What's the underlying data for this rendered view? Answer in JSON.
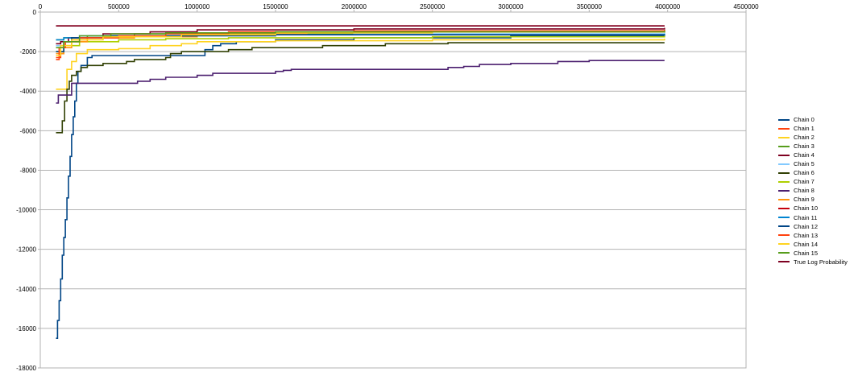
{
  "chart_data": {
    "type": "line",
    "title": "",
    "xlabel": "",
    "ylabel": "",
    "xlim": [
      0,
      4500000
    ],
    "ylim": [
      -18000,
      0
    ],
    "x_ticks": [
      "0",
      "500000",
      "1000000",
      "1500000",
      "2000000",
      "2500000",
      "3000000",
      "3500000",
      "4000000",
      "4500000"
    ],
    "y_ticks": [
      "0",
      "-2000",
      "-4000",
      "-6000",
      "-8000",
      "-10000",
      "-12000",
      "-14000",
      "-16000",
      "-18000"
    ],
    "grid": "horizontal",
    "legend_position": "right",
    "series": [
      {
        "name": "Chain 0",
        "color": "#004586",
        "points": [
          [
            100000,
            -16500
          ],
          [
            110000,
            -15600
          ],
          [
            120000,
            -14600
          ],
          [
            130000,
            -13500
          ],
          [
            140000,
            -12300
          ],
          [
            150000,
            -11400
          ],
          [
            160000,
            -10500
          ],
          [
            170000,
            -9400
          ],
          [
            180000,
            -8300
          ],
          [
            190000,
            -7300
          ],
          [
            200000,
            -6200
          ],
          [
            210000,
            -5300
          ],
          [
            220000,
            -4500
          ],
          [
            230000,
            -3600
          ],
          [
            240000,
            -3000
          ],
          [
            260000,
            -2700
          ],
          [
            300000,
            -2300
          ],
          [
            330000,
            -2200
          ],
          [
            1000000,
            -2200
          ],
          [
            1050000,
            -1900
          ],
          [
            1100000,
            -1700
          ],
          [
            1150000,
            -1600
          ],
          [
            1250000,
            -1500
          ],
          [
            1500000,
            -1400
          ],
          [
            2000000,
            -1300
          ],
          [
            3000000,
            -1200
          ],
          [
            3800000,
            -1200
          ],
          [
            3980000,
            -1100
          ]
        ]
      },
      {
        "name": "Chain 1",
        "color": "#ff420e",
        "points": [
          [
            100000,
            -2300
          ],
          [
            130000,
            -2100
          ],
          [
            150000,
            -1500
          ],
          [
            200000,
            -1400
          ],
          [
            300000,
            -1300
          ],
          [
            600000,
            -1200
          ],
          [
            1000000,
            -1100
          ],
          [
            1500000,
            -1100
          ],
          [
            2500000,
            -1000
          ],
          [
            3980000,
            -900
          ]
        ]
      },
      {
        "name": "Chain 2",
        "color": "#ffd320",
        "points": [
          [
            100000,
            -3900
          ],
          [
            150000,
            -3900
          ],
          [
            170000,
            -2900
          ],
          [
            200000,
            -2500
          ],
          [
            230000,
            -2100
          ],
          [
            300000,
            -1900
          ],
          [
            500000,
            -1850
          ],
          [
            700000,
            -1700
          ],
          [
            900000,
            -1600
          ],
          [
            1000000,
            -1500
          ],
          [
            1500000,
            -1450
          ],
          [
            2500000,
            -1400
          ],
          [
            3980000,
            -1350
          ]
        ]
      },
      {
        "name": "Chain 3",
        "color": "#579d1c",
        "points": [
          [
            100000,
            -1400
          ],
          [
            150000,
            -1300
          ],
          [
            300000,
            -1200
          ],
          [
            600000,
            -1100
          ],
          [
            1000000,
            -1100
          ],
          [
            2000000,
            -1000
          ],
          [
            3980000,
            -950
          ]
        ]
      },
      {
        "name": "Chain 4",
        "color": "#7e0021",
        "points": [
          [
            100000,
            -1600
          ],
          [
            130000,
            -1500
          ],
          [
            180000,
            -1300
          ],
          [
            400000,
            -1100
          ],
          [
            700000,
            -1000
          ],
          [
            1000000,
            -900
          ],
          [
            2000000,
            -850
          ],
          [
            3980000,
            -800
          ]
        ]
      },
      {
        "name": "Chain 5",
        "color": "#83caff",
        "points": [
          [
            100000,
            -1700
          ],
          [
            150000,
            -1500
          ],
          [
            250000,
            -1300
          ],
          [
            500000,
            -1200
          ],
          [
            1000000,
            -1150
          ],
          [
            2000000,
            -1100
          ],
          [
            3980000,
            -1050
          ]
        ]
      },
      {
        "name": "Chain 6",
        "color": "#314004",
        "points": [
          [
            100000,
            -6100
          ],
          [
            130000,
            -6100
          ],
          [
            140000,
            -5500
          ],
          [
            155000,
            -4500
          ],
          [
            170000,
            -3900
          ],
          [
            185000,
            -3500
          ],
          [
            200000,
            -3200
          ],
          [
            230000,
            -3000
          ],
          [
            260000,
            -2800
          ],
          [
            300000,
            -2700
          ],
          [
            400000,
            -2600
          ],
          [
            550000,
            -2500
          ],
          [
            600000,
            -2400
          ],
          [
            800000,
            -2300
          ],
          [
            830000,
            -2100
          ],
          [
            900000,
            -2000
          ],
          [
            1200000,
            -1900
          ],
          [
            1350000,
            -1800
          ],
          [
            1800000,
            -1700
          ],
          [
            2200000,
            -1600
          ],
          [
            2600000,
            -1550
          ],
          [
            3980000,
            -1550
          ]
        ]
      },
      {
        "name": "Chain 7",
        "color": "#aecf00",
        "points": [
          [
            100000,
            -2000
          ],
          [
            150000,
            -1700
          ],
          [
            250000,
            -1500
          ],
          [
            500000,
            -1400
          ],
          [
            800000,
            -1350
          ],
          [
            1200000,
            -1300
          ],
          [
            2500000,
            -1250
          ],
          [
            3980000,
            -1200
          ]
        ]
      },
      {
        "name": "Chain 8",
        "color": "#4b1f6f",
        "points": [
          [
            100000,
            -4600
          ],
          [
            115000,
            -4200
          ],
          [
            200000,
            -3600
          ],
          [
            600000,
            -3600
          ],
          [
            620000,
            -3500
          ],
          [
            700000,
            -3400
          ],
          [
            800000,
            -3300
          ],
          [
            1000000,
            -3200
          ],
          [
            1100000,
            -3100
          ],
          [
            1500000,
            -3000
          ],
          [
            1550000,
            -2950
          ],
          [
            1600000,
            -2900
          ],
          [
            1700000,
            -2900
          ],
          [
            2300000,
            -2900
          ],
          [
            2600000,
            -2800
          ],
          [
            2700000,
            -2750
          ],
          [
            2800000,
            -2650
          ],
          [
            3000000,
            -2600
          ],
          [
            3300000,
            -2500
          ],
          [
            3500000,
            -2450
          ],
          [
            3980000,
            -2450
          ]
        ]
      },
      {
        "name": "Chain 9",
        "color": "#ff950e",
        "points": [
          [
            100000,
            -2100
          ],
          [
            150000,
            -1800
          ],
          [
            200000,
            -1500
          ],
          [
            300000,
            -1300
          ],
          [
            600000,
            -1250
          ],
          [
            1000000,
            -1100
          ],
          [
            1700000,
            -1050
          ],
          [
            2500000,
            -1000
          ],
          [
            3980000,
            -950
          ]
        ]
      },
      {
        "name": "Chain 10",
        "color": "#c5000b",
        "points": [
          [
            100000,
            -700
          ],
          [
            3980000,
            -700
          ]
        ]
      },
      {
        "name": "Chain 11",
        "color": "#0084d1",
        "points": [
          [
            100000,
            -1400
          ],
          [
            150000,
            -1300
          ],
          [
            250000,
            -1200
          ],
          [
            600000,
            -1200
          ],
          [
            1000000,
            -1150
          ],
          [
            2000000,
            -1150
          ],
          [
            3980000,
            -1100
          ]
        ]
      },
      {
        "name": "Chain 12",
        "color": "#004586",
        "points": [
          [
            100000,
            -2000
          ],
          [
            150000,
            -1500
          ],
          [
            200000,
            -1300
          ],
          [
            400000,
            -1200
          ],
          [
            700000,
            -1200
          ],
          [
            1500000,
            -1150
          ],
          [
            3980000,
            -1150
          ]
        ]
      },
      {
        "name": "Chain 13",
        "color": "#ff420e",
        "points": [
          [
            100000,
            -2400
          ],
          [
            120000,
            -1800
          ],
          [
            160000,
            -1500
          ],
          [
            250000,
            -1300
          ],
          [
            500000,
            -1200
          ],
          [
            800000,
            -1100
          ],
          [
            1200000,
            -1000
          ],
          [
            2000000,
            -950
          ],
          [
            3980000,
            -900
          ]
        ]
      },
      {
        "name": "Chain 14",
        "color": "#ffd320",
        "points": [
          [
            100000,
            -2200
          ],
          [
            130000,
            -1700
          ],
          [
            200000,
            -1400
          ],
          [
            400000,
            -1250
          ],
          [
            900000,
            -1150
          ],
          [
            1500000,
            -1050
          ],
          [
            2500000,
            -1000
          ],
          [
            3980000,
            -950
          ]
        ]
      },
      {
        "name": "Chain 15",
        "color": "#579d1c",
        "points": [
          [
            100000,
            -1800
          ],
          [
            150000,
            -1500
          ],
          [
            250000,
            -1200
          ],
          [
            450000,
            -1100
          ],
          [
            800000,
            -1050
          ],
          [
            1500000,
            -1000
          ],
          [
            3980000,
            -950
          ]
        ]
      },
      {
        "name": "True Log Probability",
        "color": "#7e0021",
        "points": [
          [
            100000,
            -700
          ],
          [
            3980000,
            -700
          ]
        ]
      }
    ]
  }
}
